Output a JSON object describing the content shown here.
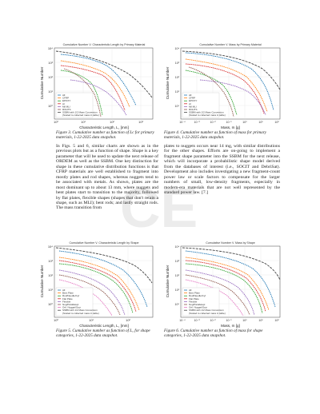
{
  "figures": [
    {
      "title": "Cumulative Number V. Characteristic Length by Primary Material",
      "xlabel": "Characteristic Length, L꜀ [mm]",
      "ylabel": "Cumulative Number",
      "xticks": [
        "10⁰",
        "10¹",
        "10²",
        "10³"
      ],
      "yticks": [
        "10⁴",
        "10³",
        "10²",
        "10¹",
        "10⁰"
      ],
      "legend": [
        "All",
        "CFRP",
        "EPOXY",
        "Al",
        "Mil MLI",
        "ROHTS",
        "SSBM with 1/2 Mass Conversion",
        "(Scaled to collected mass in table)"
      ],
      "caption": "Figure 3. Cumulative number as function of Lc for primary materials, 1-22-2025 data snapshot."
    },
    {
      "title": "Cumulative Number V. Mass by Primary Material",
      "xlabel": "Mass, m [g]",
      "ylabel": "Cumulative Number",
      "xticks": [
        "10⁻⁴",
        "10⁻³",
        "10⁻²",
        "10⁻¹",
        "10⁰",
        "10¹",
        "10²"
      ],
      "yticks": [
        "10⁴",
        "10³",
        "10²",
        "10¹",
        "10⁰"
      ],
      "legend": [
        "All",
        "CFRP",
        "EPOXY",
        "Al",
        "Mil MLI",
        "ROHTS",
        "SSBM with 1/2 Mass Conversion",
        "(Scaled to collected mass in table)"
      ],
      "caption": "Figure 4. Cumulative number as function of mass for primary materials, 1-22-2025 data snapshot."
    },
    {
      "title": "Cumulative Number V. Characteristic Length by Shape",
      "xlabel": "Characteristic Length, L꜀ [mm]",
      "ylabel": "Cumulative Number",
      "xticks": [
        "10⁰",
        "10¹",
        "10²"
      ],
      "yticks": [
        "10⁴",
        "10³",
        "10²",
        "10¹",
        "10⁰"
      ],
      "legend": [
        "All",
        "Bent Plate",
        "Rod/Needle/Cyl",
        "Flat Plate",
        "Flexible",
        "Nug/Parallelepi",
        "Ortl. Nugget/Scyr",
        "SSBM with 1/2 Mass Conversion",
        "(Scaled to collected mass in table)"
      ],
      "caption": "Figure 5. Cumulative number as function of L꜀ for shape categories, 1-22-2025 data snapshot."
    },
    {
      "title": "Cumulative Number V. Mass by Shape",
      "xlabel": "Mass, m [g]",
      "ylabel": "Cumulative Number",
      "xticks": [
        "10⁻⁴",
        "10⁻³",
        "10⁻²",
        "10⁻¹",
        "10⁰",
        "10¹",
        "10²"
      ],
      "yticks": [
        "10⁴",
        "10³",
        "10²",
        "10¹",
        "10⁰"
      ],
      "legend": [
        "All",
        "Bent Plate",
        "Rod/Needle/Cyl",
        "Flat Plate",
        "Flexible",
        "Nug/Parallelepi",
        "Ortl. Nugget/Scyr",
        "SSBM with 1/2 Mass Conversion",
        "(Scaled to collected mass in table)"
      ],
      "caption": "Figure 6. Cumulative number as function of mass for shape categories, 1-22-2025 data snapshot."
    }
  ],
  "text_left": "In Figs. 5 and 6, similar charts are shown as in the previous plots but as a function of shape. Shape is a key parameter that will be used to update the next release of ORDEM as well as the SSBM. One key distinction for shape in these cumulative distribution functions is that CFRP materials are well established to fragment into mostly plates and rod shapes, whereas nuggets tend to be associated with metals. As shown, plates are the most dominant up to about 13 mm, where nuggets and bent plates start to transition to the majority, followed by flat plates, flexible shapes (shapes that don't retain a shape, such as MLI); bent rods; and lastly straight rods. The mass transition from",
  "text_right": "plates to nuggets occurs near 14 mg, with similar distributions for the other shapes. Efforts are on-going to implement a fragment shape parameter into the SSBM for the next release, which will incorporate a probabilistic shape model derived from the databases of interest (i.e., SOCIT and DebriSat). Development also includes investigating a new fragment-count power law or scale factors to compensate for the larger numbers of small, low-density fragments, especially in modern-era materials that are not well represented by the standard power law. [7.]",
  "colors": {
    "All": "#1f77b4",
    "Series2": "#ff7f0e",
    "Series3": "#2ca02c",
    "Series4": "#d62728",
    "Series5": "#9467bd",
    "Series6": "#8c564b",
    "Series7": "#e377c2",
    "SSBM": "#444444"
  },
  "watermark": "CE"
}
